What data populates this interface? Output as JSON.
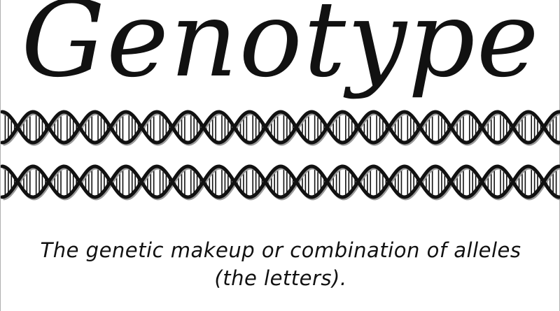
{
  "title": "Genotype",
  "caption": {
    "line1": "The genetic makeup or combination of alleles",
    "line2": "(the letters)."
  },
  "decorations": {
    "helix_icon": "dna-double-helix-icon",
    "helix_count": 2,
    "turns_per_helix": 9,
    "stroke_color": "#111111"
  }
}
